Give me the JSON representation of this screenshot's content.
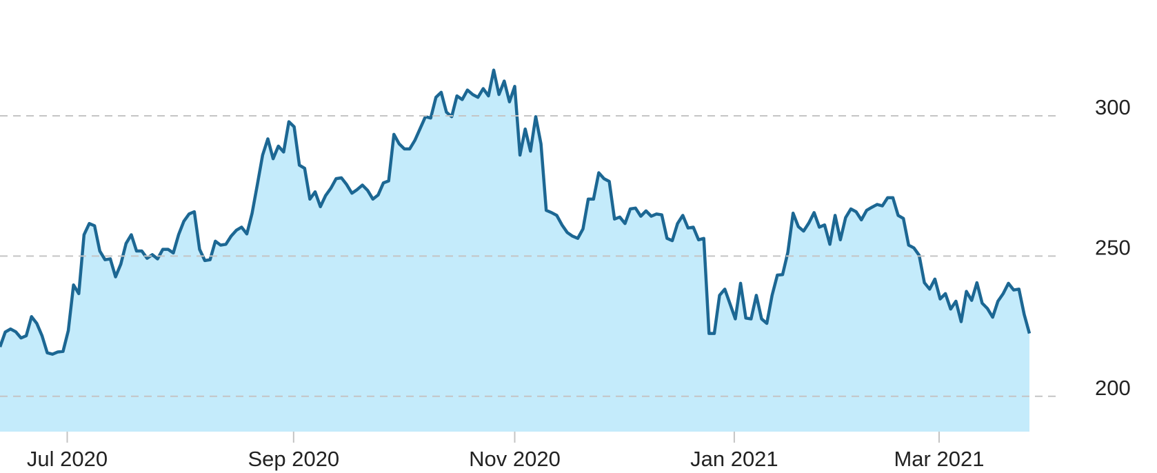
{
  "chart_data": {
    "type": "area",
    "values": [
      217.6,
      222.9,
      224,
      223,
      220.8,
      221.6,
      228.4,
      226,
      221.6,
      215.5,
      215,
      215.8,
      216,
      223.4,
      239.7,
      236.6,
      257.6,
      261.6,
      260.8,
      251.8,
      248.7,
      249,
      242.6,
      247.1,
      254.5,
      257.6,
      251.8,
      251.8,
      249.2,
      250.5,
      249,
      252.4,
      252.4,
      251.1,
      257.6,
      262.4,
      265,
      265.8,
      252.4,
      248.4,
      248.7,
      255.3,
      253.9,
      254.2,
      257.1,
      259.2,
      260.3,
      257.9,
      265.3,
      275.5,
      286,
      291.8,
      284.7,
      289.2,
      287.1,
      297.9,
      296.1,
      282.4,
      281.3,
      270.3,
      272.9,
      267.6,
      271.6,
      274.2,
      277.6,
      277.9,
      275.5,
      272.4,
      273.7,
      275.3,
      273.4,
      270.3,
      271.8,
      276.1,
      276.8,
      293.4,
      290,
      288.2,
      288.2,
      291.3,
      295.5,
      299.7,
      299.2,
      306.6,
      308.4,
      301.3,
      299.7,
      307.1,
      305.8,
      309.2,
      307.6,
      306.6,
      309.7,
      307.1,
      316.3,
      307.6,
      312.4,
      305,
      310.5,
      286,
      295.3,
      287.4,
      299.7,
      290,
      266.3,
      265.5,
      264.5,
      261.1,
      258.4,
      257.1,
      256.3,
      259.7,
      270.3,
      270.3,
      279.7,
      277.6,
      276.6,
      263.2,
      263.9,
      261.6,
      266.8,
      267.1,
      264.2,
      266.1,
      264.2,
      265,
      264.7,
      256.3,
      255.5,
      261.6,
      264.5,
      260,
      260.3,
      255.8,
      256.3,
      222.4,
      222.4,
      236,
      238.2,
      232.9,
      227.6,
      240.3,
      227.9,
      227.6,
      236,
      227.6,
      226,
      236,
      243.2,
      243.4,
      251.3,
      265.3,
      260.5,
      258.9,
      261.8,
      265.5,
      260.3,
      261.1,
      254.2,
      264.5,
      255.8,
      263.7,
      266.8,
      265.8,
      262.9,
      266.3,
      267.4,
      268.4,
      267.9,
      270.8,
      270.8,
      264.5,
      263.4,
      253.9,
      252.9,
      250.3,
      240.5,
      238.2,
      241.8,
      234.7,
      236.6,
      231.1,
      233.9,
      226.6,
      237.4,
      234.2,
      240.5,
      233.2,
      231.3,
      228.2,
      233.9,
      236.6,
      240.3,
      237.9,
      238.2,
      229.2,
      222.4
    ],
    "color": "#1c6793",
    "fill_color": "#c4ebfb",
    "xlim": [
      0,
      196
    ],
    "xticks": [
      {
        "value": 12.8,
        "label": "Jul 2020"
      },
      {
        "value": 55.9,
        "label": "Sep 2020"
      },
      {
        "value": 98.0,
        "label": "Nov 2020"
      },
      {
        "value": 139.8,
        "label": "Jan 2021"
      },
      {
        "value": 178.8,
        "label": "Mar 2021"
      }
    ],
    "ylim": [
      187.4,
      341.3
    ],
    "yticks": [
      200,
      250,
      300
    ],
    "grid": true
  }
}
